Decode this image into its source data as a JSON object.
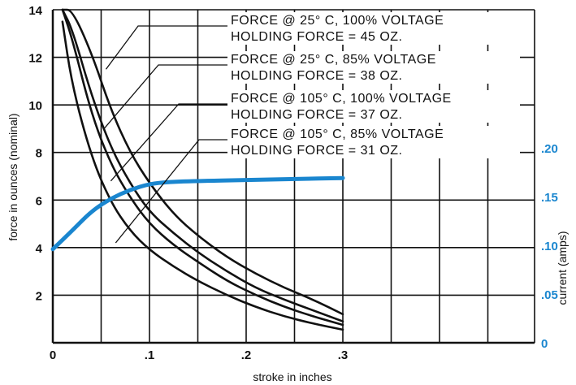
{
  "chart_data": {
    "type": "line",
    "xlabel": "stroke in inches",
    "ylabel": "force in ounces (nominal)",
    "y2label": "current (amps)",
    "xlim": [
      0,
      0.3
    ],
    "ylim": [
      0,
      14
    ],
    "y2lim": [
      0,
      0.2
    ],
    "x_ticks": [
      0,
      0.1,
      0.2,
      0.3
    ],
    "x_tick_labels": [
      "0",
      ".1",
      ".2",
      ".3"
    ],
    "y_ticks": [
      2,
      4,
      6,
      8,
      10,
      12,
      14
    ],
    "y_tick_labels": [
      "2",
      "4",
      "6",
      "8",
      "10",
      "12",
      "14"
    ],
    "y2_ticks": [
      0,
      0.05,
      0.1,
      0.15,
      0.2
    ],
    "y2_tick_labels": [
      "0",
      ".05",
      ".10",
      ".15",
      ".20"
    ],
    "grid": true,
    "colors": {
      "force": "#111111",
      "current": "#1a86cf",
      "grid": "#111111"
    },
    "series": [
      {
        "legend": [
          "FORCE @  25° C, 100% VOLTAGE",
          "HOLDING FORCE = 45 OZ."
        ],
        "axis": "left",
        "points": [
          [
            0.01,
            14
          ],
          [
            0.02,
            14
          ],
          [
            0.04,
            12.2
          ],
          [
            0.06,
            9.8
          ],
          [
            0.08,
            8.0
          ],
          [
            0.1,
            6.7
          ],
          [
            0.125,
            5.4
          ],
          [
            0.15,
            4.5
          ],
          [
            0.18,
            3.6
          ],
          [
            0.21,
            2.9
          ],
          [
            0.24,
            2.3
          ],
          [
            0.27,
            1.8
          ],
          [
            0.3,
            1.2
          ]
        ]
      },
      {
        "legend": [
          "FORCE @  25° C,  85% VOLTAGE",
          "HOLDING FORCE = 38 OZ."
        ],
        "axis": "left",
        "points": [
          [
            0.01,
            14
          ],
          [
            0.02,
            13.2
          ],
          [
            0.04,
            10.4
          ],
          [
            0.06,
            8.2
          ],
          [
            0.08,
            6.7
          ],
          [
            0.1,
            5.5
          ],
          [
            0.125,
            4.6
          ],
          [
            0.15,
            3.8
          ],
          [
            0.18,
            3.0
          ],
          [
            0.21,
            2.3
          ],
          [
            0.24,
            1.8
          ],
          [
            0.27,
            1.35
          ],
          [
            0.3,
            0.9
          ]
        ]
      },
      {
        "legend": [
          "FORCE @ 105° C, 100% VOLTAGE",
          "HOLDING FORCE = 37 OZ."
        ],
        "axis": "left",
        "points": [
          [
            0.01,
            14
          ],
          [
            0.02,
            12.8
          ],
          [
            0.04,
            9.6
          ],
          [
            0.06,
            7.5
          ],
          [
            0.08,
            6.1
          ],
          [
            0.1,
            5.0
          ],
          [
            0.125,
            4.1
          ],
          [
            0.15,
            3.4
          ],
          [
            0.18,
            2.6
          ],
          [
            0.21,
            2.0
          ],
          [
            0.24,
            1.5
          ],
          [
            0.27,
            1.1
          ],
          [
            0.3,
            0.75
          ]
        ]
      },
      {
        "legend": [
          "FORCE @ 105° C,  85% VOLTAGE",
          "HOLDING FORCE = 31 OZ."
        ],
        "axis": "left",
        "points": [
          [
            0.01,
            13.5
          ],
          [
            0.02,
            10.8
          ],
          [
            0.04,
            7.8
          ],
          [
            0.06,
            5.9
          ],
          [
            0.08,
            4.7
          ],
          [
            0.1,
            3.9
          ],
          [
            0.125,
            3.2
          ],
          [
            0.15,
            2.6
          ],
          [
            0.18,
            2.0
          ],
          [
            0.21,
            1.5
          ],
          [
            0.24,
            1.1
          ],
          [
            0.27,
            0.8
          ],
          [
            0.3,
            0.55
          ]
        ]
      },
      {
        "legend": null,
        "axis": "right",
        "points": [
          [
            0,
            0.096
          ],
          [
            0.02,
            0.115
          ],
          [
            0.04,
            0.135
          ],
          [
            0.06,
            0.148
          ],
          [
            0.08,
            0.157
          ],
          [
            0.1,
            0.163
          ],
          [
            0.12,
            0.165
          ],
          [
            0.15,
            0.166
          ],
          [
            0.2,
            0.167
          ],
          [
            0.25,
            0.168
          ],
          [
            0.3,
            0.169
          ]
        ]
      }
    ]
  }
}
